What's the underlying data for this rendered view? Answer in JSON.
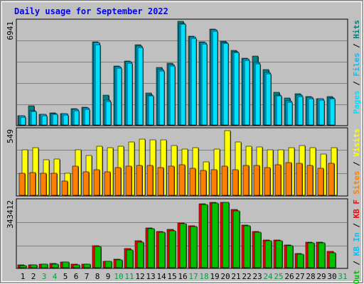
{
  "chart_data": {
    "type": "bar",
    "title": "Daily usage for September 2022",
    "colors": {
      "background": "#c0c0c0",
      "border": "#808080",
      "title": "#0000ff",
      "hits": "#008080",
      "files": "#00c0ff",
      "pages": "#00e0ff",
      "visits": "#ffff00",
      "sites": "#ff8000",
      "kbin": "#008000",
      "kbout": "#ff0000",
      "kbf": "#00c000",
      "weekend_day": "#00a040",
      "weekday_day": "#000000"
    },
    "days": [
      {
        "label": "1",
        "weekend": false
      },
      {
        "label": "2",
        "weekend": false
      },
      {
        "label": "3",
        "weekend": true
      },
      {
        "label": "4",
        "weekend": true
      },
      {
        "label": "5",
        "weekend": false
      },
      {
        "label": "6",
        "weekend": false
      },
      {
        "label": "7",
        "weekend": false
      },
      {
        "label": "8",
        "weekend": false
      },
      {
        "label": "9",
        "weekend": false
      },
      {
        "label": "10",
        "weekend": true
      },
      {
        "label": "11",
        "weekend": true
      },
      {
        "label": "12",
        "weekend": false
      },
      {
        "label": "13",
        "weekend": false
      },
      {
        "label": "14",
        "weekend": false
      },
      {
        "label": "15",
        "weekend": false
      },
      {
        "label": "16",
        "weekend": false
      },
      {
        "label": "17",
        "weekend": true
      },
      {
        "label": "18",
        "weekend": true
      },
      {
        "label": "19",
        "weekend": false
      },
      {
        "label": "20",
        "weekend": false
      },
      {
        "label": "21",
        "weekend": false
      },
      {
        "label": "22",
        "weekend": false
      },
      {
        "label": "23",
        "weekend": false
      },
      {
        "label": "24",
        "weekend": true
      },
      {
        "label": "25",
        "weekend": true
      },
      {
        "label": "26",
        "weekend": false
      },
      {
        "label": "27",
        "weekend": false
      },
      {
        "label": "28",
        "weekend": false
      },
      {
        "label": "29",
        "weekend": false
      },
      {
        "label": "30",
        "weekend": false
      },
      {
        "label": "31",
        "weekend": true
      }
    ],
    "panel_hits": {
      "max_label": "6941",
      "ymax": 6941,
      "legend": [
        {
          "text": "Hits",
          "color": "#008080"
        },
        {
          "text": " / ",
          "color": "#000000"
        },
        {
          "text": "Files",
          "color": "#00c0ff"
        },
        {
          "text": " / ",
          "color": "#000000"
        },
        {
          "text": "Pages",
          "color": "#00e0ff"
        }
      ],
      "series": [
        {
          "name": "Hits",
          "color": "#008080",
          "values": [
            620,
            1290,
            700,
            810,
            760,
            1070,
            1170,
            5540,
            2020,
            3960,
            4290,
            5380,
            2140,
            3840,
            4150,
            6941,
            5950,
            5580,
            6440,
            5590,
            4970,
            4480,
            4600,
            3720,
            2180,
            1800,
            2110,
            1890,
            1780,
            1890,
            0
          ]
        },
        {
          "name": "Files",
          "color": "#00c0ff",
          "values": [
            600,
            960,
            690,
            770,
            740,
            1030,
            1130,
            5500,
            1650,
            3920,
            4230,
            5280,
            2020,
            3700,
            4030,
            6800,
            5910,
            5520,
            6370,
            5520,
            4920,
            4410,
            4190,
            3510,
            2020,
            1620,
            2000,
            1850,
            1740,
            1820,
            0
          ]
        },
        {
          "name": "Pages",
          "color": "#00e0ff",
          "values": [
            520,
            900,
            620,
            710,
            680,
            960,
            1060,
            5380,
            1570,
            3820,
            4140,
            5170,
            1930,
            3600,
            3940,
            6730,
            5820,
            5440,
            6290,
            5450,
            4840,
            4330,
            4110,
            3430,
            1940,
            1540,
            1920,
            1780,
            1670,
            1750,
            0
          ]
        }
      ]
    },
    "panel_visits": {
      "max_label": "549",
      "ymax": 549,
      "legend": [
        {
          "text": "Visits",
          "color": "#ffff00"
        },
        {
          "text": " / ",
          "color": "#000000"
        },
        {
          "text": "Sites",
          "color": "#ff8000"
        }
      ],
      "series": [
        {
          "name": "Visits",
          "color": "#ffff00",
          "values": [
            385,
            405,
            300,
            305,
            185,
            385,
            340,
            415,
            405,
            415,
            455,
            475,
            470,
            470,
            420,
            395,
            405,
            285,
            395,
            549,
            450,
            415,
            410,
            385,
            385,
            405,
            420,
            405,
            350,
            405,
            0
          ]
        },
        {
          "name": "Sites",
          "color": "#ff8000",
          "values": [
            190,
            195,
            190,
            185,
            120,
            245,
            200,
            220,
            200,
            235,
            245,
            255,
            255,
            235,
            245,
            260,
            230,
            210,
            215,
            245,
            220,
            255,
            255,
            235,
            260,
            275,
            270,
            255,
            230,
            270,
            0
          ]
        }
      ]
    },
    "panel_kb": {
      "max_label": "343412",
      "ymax": 343412,
      "legend": [
        {
          "text": "KB F",
          "color": "#ff0000"
        },
        {
          "text": " / ",
          "color": "#000000"
        },
        {
          "text": "KB In",
          "color": "#00c0ff"
        },
        {
          "text": " / ",
          "color": "#000000"
        },
        {
          "text": "KB Out",
          "color": "#00c000"
        }
      ],
      "series": [
        {
          "name": "KB F",
          "color": "#ff0000",
          "values": [
            14000,
            16000,
            20000,
            22000,
            30000,
            18000,
            20000,
            115000,
            35000,
            45000,
            100000,
            140000,
            210000,
            190000,
            200000,
            235000,
            220000,
            336000,
            343412,
            343412,
            305000,
            225000,
            190000,
            145000,
            145000,
            120000,
            75000,
            135000,
            135000,
            85000,
            0
          ]
        },
        {
          "name": "KB Out",
          "color": "#00c000",
          "values": [
            12000,
            14000,
            18000,
            20000,
            28000,
            16000,
            18000,
            112000,
            32000,
            40000,
            95000,
            135000,
            205000,
            185000,
            195000,
            230000,
            215000,
            333000,
            340000,
            343412,
            300000,
            220000,
            185000,
            140000,
            140000,
            115000,
            72000,
            130000,
            132000,
            80000,
            0
          ]
        }
      ]
    }
  }
}
